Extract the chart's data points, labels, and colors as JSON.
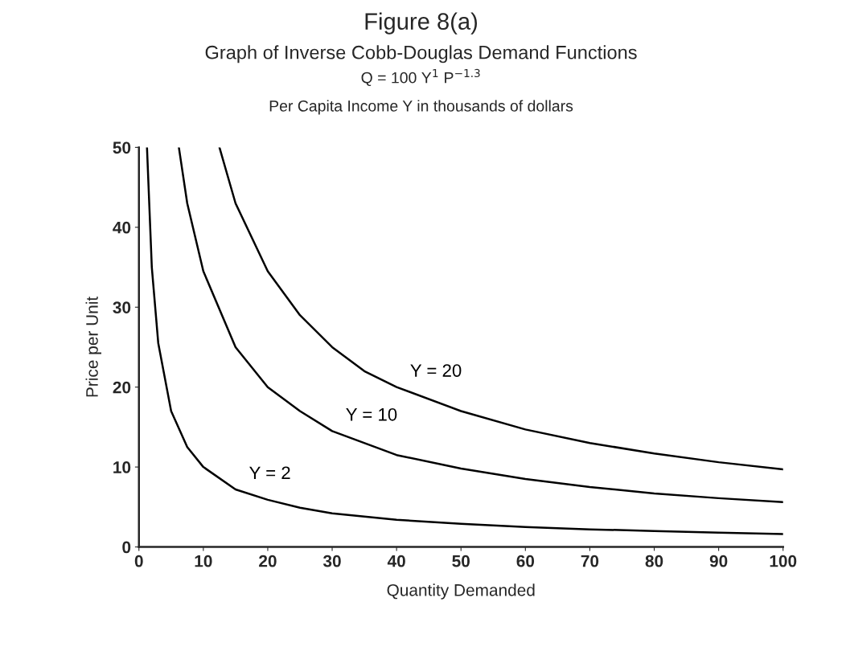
{
  "chart_data": {
    "type": "line",
    "title": "Figure 8(a)",
    "subtitle": "Graph of Inverse Cobb-Douglas Demand Functions",
    "xlabel": "Quantity Demanded",
    "ylabel": "Price per Unit",
    "series": [
      {
        "name": "Y = 2",
        "color": "#000000",
        "x": [
          1.25,
          2,
          3,
          5,
          7.5,
          10,
          15,
          20,
          25,
          30,
          40,
          50,
          60,
          70,
          80,
          90,
          100
        ],
        "values": [
          50,
          35,
          25.5,
          17,
          12.5,
          10,
          7.2,
          5.9,
          4.9,
          4.2,
          3.4,
          2.9,
          2.5,
          2.2,
          2.0,
          1.8,
          1.6
        ]
      },
      {
        "name": "Y = 10",
        "color": "#000000",
        "x": [
          6.2,
          7.5,
          10,
          15,
          20,
          25,
          30,
          40,
          50,
          60,
          70,
          80,
          90,
          100
        ],
        "values": [
          50,
          43,
          34.5,
          25,
          20,
          17,
          14.5,
          11.5,
          9.8,
          8.5,
          7.5,
          6.7,
          6.1,
          5.6
        ]
      },
      {
        "name": "Y = 20",
        "color": "#000000",
        "x": [
          12.5,
          15,
          20,
          25,
          30,
          35,
          40,
          50,
          60,
          70,
          80,
          90,
          100
        ],
        "values": [
          50,
          43,
          34.5,
          29,
          25,
          22,
          20,
          17,
          14.7,
          13,
          11.7,
          10.6,
          9.7
        ]
      }
    ],
    "annotations": [
      "Q = 100 Y$^{1}$ P$^{−1.3}$",
      "Per Capita Income Y in thousands of dollars"
    ],
    "xlim": [
      0,
      100
    ],
    "ylim": [
      0,
      50
    ],
    "xticks": [
      0,
      10,
      20,
      30,
      40,
      50,
      60,
      70,
      80,
      90,
      100
    ],
    "yticks": [
      0,
      10,
      20,
      30,
      40,
      50
    ],
    "grid": false,
    "legend": false,
    "marker": "none",
    "line_style": "solid"
  }
}
